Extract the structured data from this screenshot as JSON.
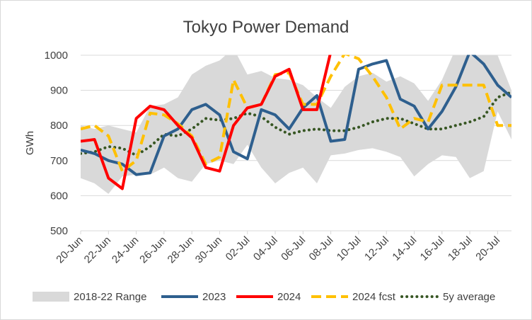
{
  "chart_data": {
    "type": "line",
    "title": "Tokyo Power Demand",
    "xlabel": "",
    "ylabel": "GWh",
    "ylim": [
      500,
      1000
    ],
    "yticks": [
      500,
      600,
      700,
      800,
      900,
      1000
    ],
    "grid": true,
    "legend_position": "bottom",
    "x_tick_labels": [
      "20-Jun",
      "22-Jun",
      "24-Jun",
      "26-Jun",
      "28-Jun",
      "30-Jun",
      "02-Jul",
      "04-Jul",
      "06-Jul",
      "08-Jul",
      "10-Jul",
      "12-Jul",
      "14-Jul",
      "16-Jul",
      "18-Jul",
      "20-Jul"
    ],
    "days": [
      "20-Jun",
      "21-Jun",
      "22-Jun",
      "23-Jun",
      "24-Jun",
      "25-Jun",
      "26-Jun",
      "27-Jun",
      "28-Jun",
      "29-Jun",
      "30-Jun",
      "01-Jul",
      "02-Jul",
      "03-Jul",
      "04-Jul",
      "05-Jul",
      "06-Jul",
      "07-Jul",
      "08-Jul",
      "09-Jul",
      "10-Jul",
      "11-Jul",
      "12-Jul",
      "13-Jul",
      "14-Jul",
      "15-Jul",
      "16-Jul",
      "17-Jul",
      "18-Jul",
      "19-Jul",
      "20-Jul",
      "21-Jul"
    ],
    "range": {
      "name": "2018-22 Range",
      "color": "#d9d9d9",
      "upper": [
        800,
        790,
        800,
        790,
        780,
        855,
        860,
        880,
        945,
        970,
        985,
        1020,
        945,
        955,
        935,
        930,
        915,
        880,
        850,
        910,
        940,
        950,
        925,
        940,
        920,
        870,
        930,
        1020,
        1020,
        1020,
        1000,
        900
      ],
      "lower": [
        650,
        635,
        605,
        655,
        660,
        660,
        680,
        650,
        640,
        690,
        700,
        690,
        745,
        680,
        635,
        665,
        680,
        635,
        715,
        720,
        730,
        735,
        725,
        710,
        655,
        690,
        715,
        710,
        650,
        670,
        840,
        760
      ]
    },
    "series": [
      {
        "name": "2023",
        "color": "#2e5f8e",
        "dash": "solid",
        "width": 4,
        "values": [
          730,
          720,
          700,
          690,
          660,
          665,
          770,
          790,
          845,
          860,
          830,
          725,
          705,
          845,
          830,
          790,
          850,
          885,
          755,
          760,
          960,
          975,
          985,
          875,
          855,
          790,
          840,
          910,
          1010,
          975,
          915,
          880
        ]
      },
      {
        "name": "2024",
        "color": "#ff0000",
        "dash": "solid",
        "width": 4,
        "values": [
          755,
          760,
          650,
          620,
          820,
          855,
          845,
          800,
          765,
          680,
          670,
          800,
          850,
          860,
          940,
          960,
          845,
          845,
          1010,
          null,
          null,
          null,
          null,
          null,
          null,
          null,
          null,
          null,
          null,
          null,
          null,
          null
        ]
      },
      {
        "name": "2024 fcst",
        "color": "#ffc000",
        "dash": "dashed",
        "width": 4,
        "values": [
          790,
          800,
          770,
          670,
          700,
          835,
          830,
          805,
          770,
          690,
          710,
          930,
          850,
          860,
          945,
          950,
          860,
          860,
          940,
          1005,
          990,
          940,
          880,
          790,
          820,
          810,
          915,
          915,
          915,
          915,
          800,
          800
        ]
      },
      {
        "name": "5y average",
        "color": "#375623",
        "dash": "dotted",
        "width": 4,
        "values": [
          720,
          725,
          740,
          735,
          715,
          740,
          775,
          770,
          790,
          820,
          815,
          820,
          835,
          825,
          795,
          775,
          785,
          790,
          785,
          785,
          795,
          810,
          820,
          820,
          805,
          790,
          790,
          800,
          810,
          825,
          880,
          895
        ]
      }
    ]
  }
}
